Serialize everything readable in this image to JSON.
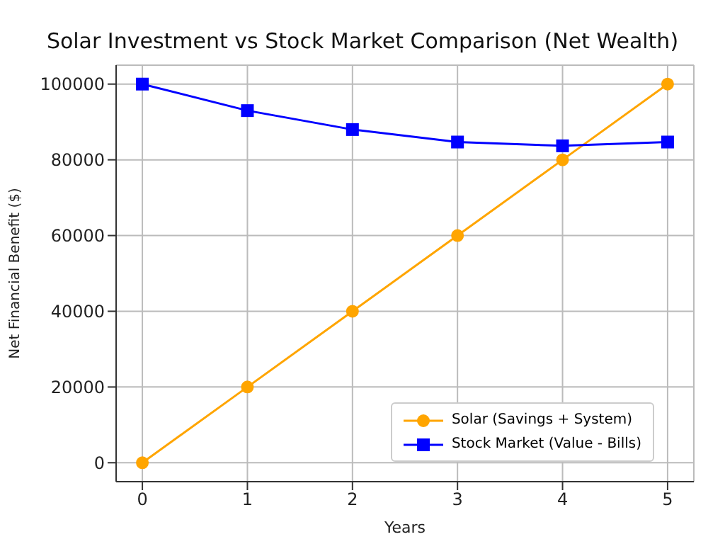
{
  "chart_data": {
    "type": "line",
    "title": "Solar Investment vs Stock Market Comparison (Net Wealth)",
    "xlabel": "Years",
    "ylabel": "Net Financial Benefit ($)",
    "x": [
      0,
      1,
      2,
      3,
      4,
      5
    ],
    "series": [
      {
        "name": "Solar (Savings + System)",
        "color": "#ffa500",
        "marker": "circle",
        "values": [
          0,
          20000,
          40000,
          60000,
          80000,
          100000
        ]
      },
      {
        "name": "Stock Market (Value - Bills)",
        "color": "#0000ff",
        "marker": "square",
        "values": [
          100000,
          93000,
          88000,
          84700,
          83700,
          84700
        ]
      }
    ],
    "xlim": [
      -0.25,
      5.25
    ],
    "xticks": [
      0,
      1,
      2,
      3,
      4,
      5
    ],
    "ylim": [
      -5000,
      105000
    ],
    "yticks": [
      0,
      20000,
      40000,
      60000,
      80000,
      100000
    ],
    "grid": true,
    "legend": "bottom right"
  }
}
